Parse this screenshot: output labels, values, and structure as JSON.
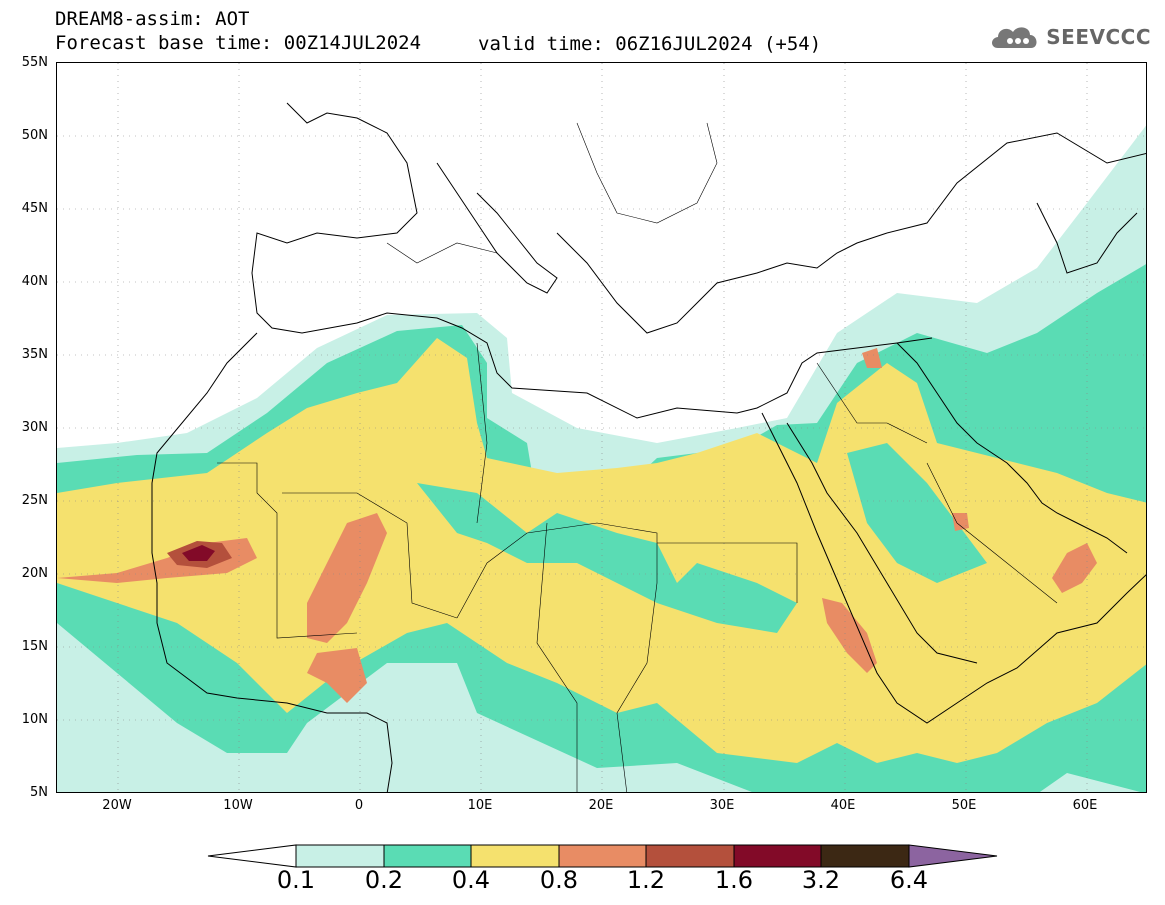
{
  "header": {
    "title": "DREAM8-assim: AOT",
    "base_time": "Forecast base time: 00Z14JUL2024",
    "valid_time": "valid time: 06Z16JUL2024 (+54)"
  },
  "logo": {
    "text": "SEEVCCC",
    "icon": "cloud-icon"
  },
  "map": {
    "lon_range": [
      -25,
      65
    ],
    "lat_range": [
      5,
      55
    ],
    "lat_labels": [
      "55N",
      "50N",
      "45N",
      "40N",
      "35N",
      "30N",
      "25N",
      "20N",
      "15N",
      "10N",
      "5N"
    ],
    "lat_values": [
      55,
      50,
      45,
      40,
      35,
      30,
      25,
      20,
      15,
      10,
      5
    ],
    "lon_labels": [
      "20W",
      "10W",
      "0",
      "10E",
      "20E",
      "30E",
      "40E",
      "50E",
      "60E"
    ],
    "lon_values": [
      -20,
      -10,
      0,
      10,
      20,
      30,
      40,
      50,
      60
    ]
  },
  "colorbar": {
    "labels": [
      "0.1",
      "0.2",
      "0.4",
      "0.8",
      "1.2",
      "1.6",
      "3.2",
      "6.4"
    ],
    "colors": [
      "#c8f0e6",
      "#5adcb4",
      "#f5e16e",
      "#e88c64",
      "#b4503c",
      "#820a28",
      "#3c2814",
      "#8c64a0"
    ],
    "under_color": "#ffffff"
  }
}
